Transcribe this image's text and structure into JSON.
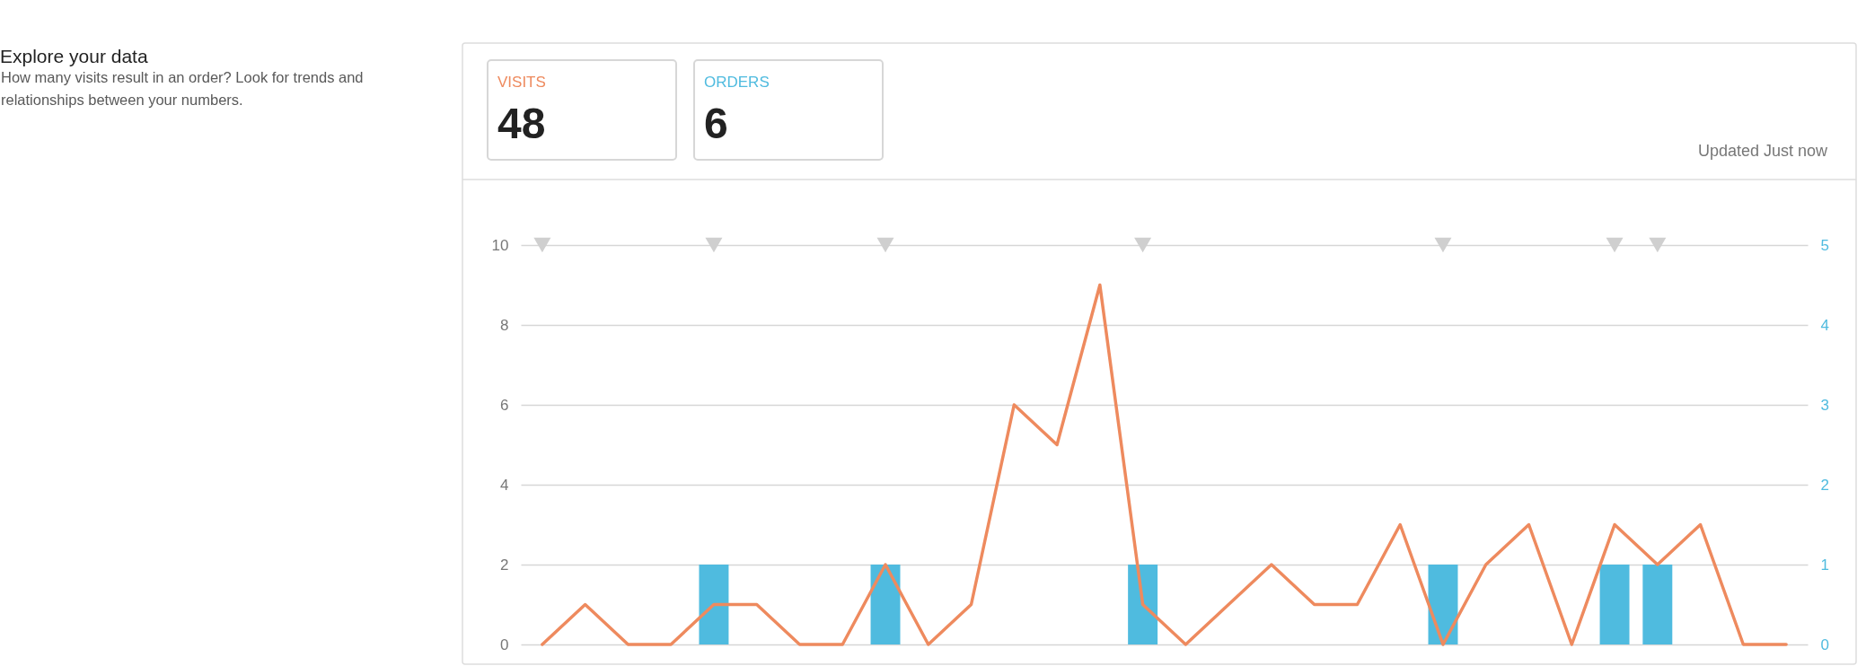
{
  "chart_data": {
    "type": "bar",
    "title": "Explore your data",
    "subtitle": "How many visits result in an order? Look for trends and relationships between your numbers.",
    "categories": [
      null,
      null,
      null,
      null,
      null,
      null,
      null,
      null,
      null,
      null,
      null,
      null,
      null,
      null,
      null,
      null,
      null,
      null,
      null,
      null,
      null,
      null,
      null,
      null,
      null,
      null,
      null,
      null,
      null,
      null
    ],
    "series": [
      {
        "name": "VISITS",
        "type": "line",
        "color": "#ee8a5e",
        "values": [
          0,
          1,
          0,
          0,
          1,
          1,
          0,
          0,
          2,
          0,
          1,
          6,
          5,
          9,
          1,
          0,
          1,
          2,
          1,
          1,
          3,
          0,
          2,
          3,
          0,
          3,
          2,
          3,
          0,
          0
        ]
      },
      {
        "name": "ORDERS",
        "axis": "y2",
        "color": "#4fbbdf",
        "values": [
          0,
          0,
          0,
          0,
          1,
          0,
          0,
          0,
          1,
          0,
          0,
          0,
          0,
          0,
          1,
          0,
          0,
          0,
          0,
          0,
          0,
          1,
          0,
          0,
          0,
          1,
          1,
          0,
          0,
          0
        ]
      },
      {
        "type": "scatter",
        "color": "#cfcfcf",
        "marker": "triangle",
        "values": [
          10,
          null,
          null,
          null,
          10,
          null,
          null,
          null,
          10,
          null,
          null,
          null,
          null,
          null,
          10,
          null,
          null,
          null,
          null,
          null,
          null,
          10,
          null,
          null,
          null,
          10,
          10,
          null,
          null,
          null
        ]
      }
    ],
    "ylim": [
      0,
      10
    ],
    "yticks": [
      0,
      2,
      4,
      6,
      8,
      10
    ],
    "y2lim": [
      0,
      5
    ],
    "y2ticks": [
      0,
      1,
      2,
      3,
      4,
      5
    ],
    "grid": "y",
    "legend": "top left",
    "annotations": [
      "48",
      "6",
      "Updated Just now"
    ]
  }
}
